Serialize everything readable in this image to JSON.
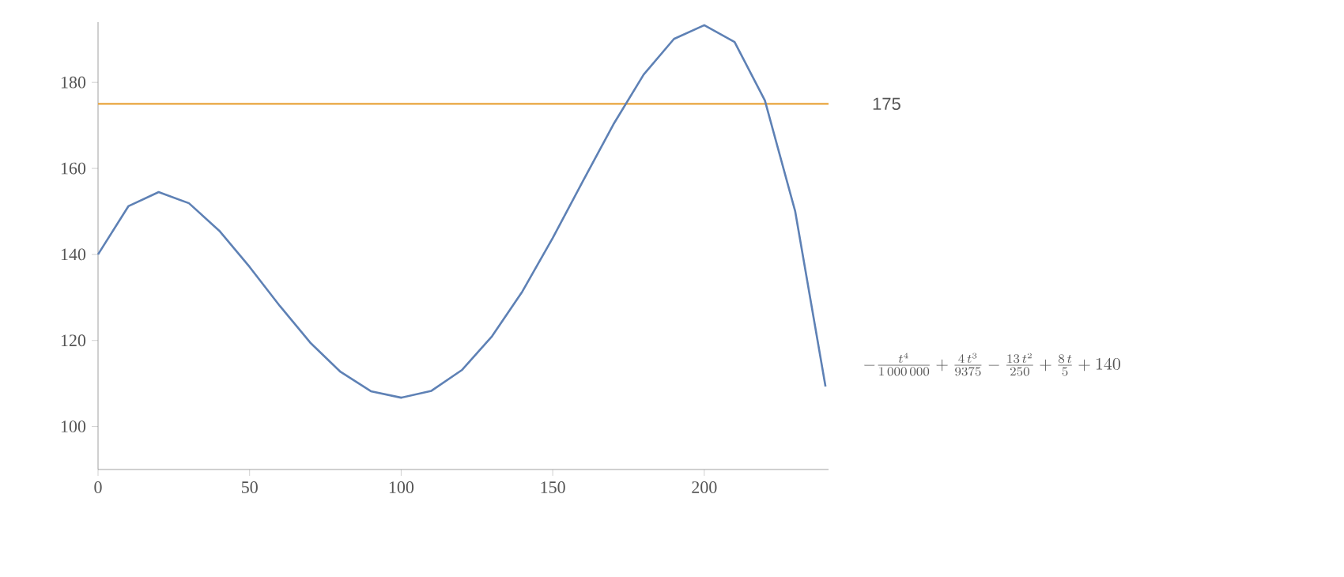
{
  "chart_data": {
    "type": "line",
    "x": [
      0,
      10,
      20,
      30,
      40,
      50,
      60,
      70,
      80,
      90,
      100,
      110,
      120,
      130,
      140,
      150,
      160,
      170,
      180,
      190,
      200,
      210,
      220,
      230,
      240
    ],
    "series": [
      {
        "name": "-\\frac{t^4}{1\\,000\\,000}+\\frac{4\\,t^3}{9375}-\\frac{13\\,t^2}{250}+\\frac{8\\,t}{5}+140",
        "color": "#5e81b5",
        "values": [
          140,
          151.2,
          154.5,
          151.9,
          145.5,
          137.1,
          128.0,
          119.5,
          112.7,
          108.2,
          106.7,
          108.3,
          113.1,
          121.0,
          131.4,
          143.8,
          157.1,
          170.2,
          181.8,
          190.1,
          193.3,
          189.4,
          175.8,
          150.0,
          109.3
        ]
      }
    ],
    "xlim": [
      0,
      241
    ],
    "ylim": [
      90,
      194
    ],
    "xticks": [
      0,
      50,
      100,
      150,
      200
    ],
    "yticks": [
      100,
      120,
      140,
      160,
      180
    ],
    "ref_lines": [
      {
        "axis": "y",
        "value": 175,
        "label": "175",
        "color": "#e8a33b"
      }
    ],
    "marker": "none",
    "line_style": "solid",
    "legend": false,
    "grid": false
  }
}
